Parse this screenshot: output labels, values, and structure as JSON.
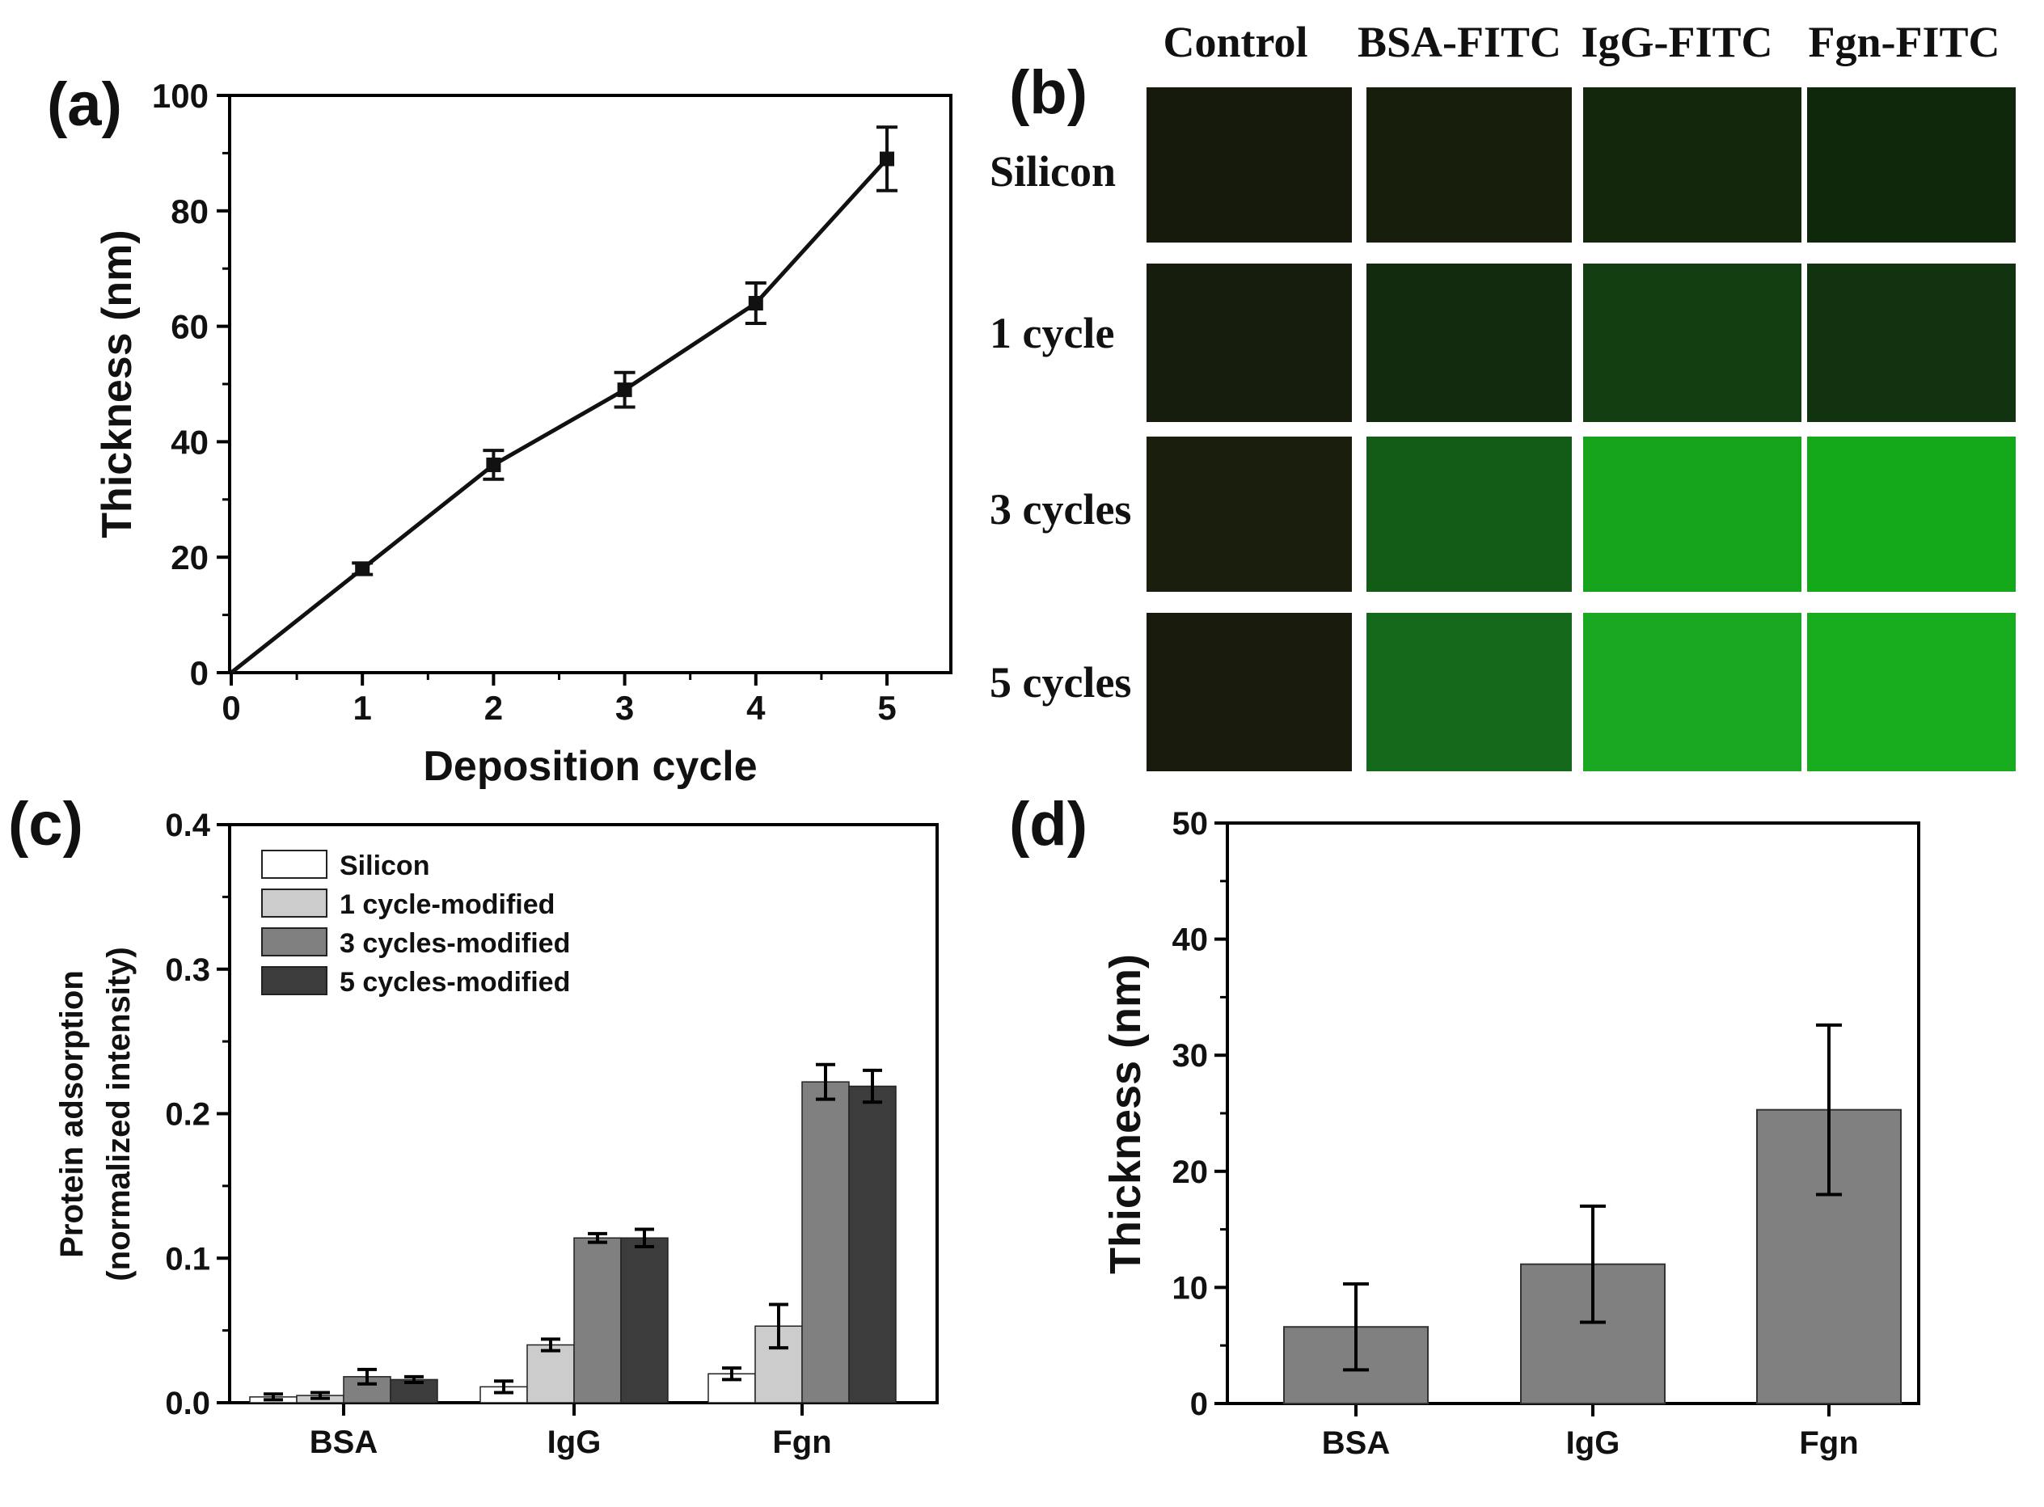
{
  "chart_data": [
    {
      "panel": "(a)",
      "type": "line",
      "xlabel": "Deposition cycle",
      "ylabel": "Thickness (nm)",
      "xlim": [
        0,
        5.5
      ],
      "ylim": [
        0,
        100
      ],
      "xticks": [
        0,
        1,
        2,
        3,
        4,
        5
      ],
      "yticks": [
        0,
        20,
        40,
        60,
        80,
        100
      ],
      "x": [
        0,
        1,
        2,
        3,
        4,
        5
      ],
      "y": [
        0,
        18,
        36,
        49,
        64,
        89
      ],
      "yerr": [
        0,
        1,
        2.5,
        3,
        3.5,
        5.5
      ],
      "color": "#111111"
    },
    {
      "panel": "(b)",
      "type": "table",
      "columns": [
        "Control",
        "BSA-FITC",
        "IgG-FITC",
        "Fgn-FITC"
      ],
      "rows": [
        "Silicon",
        "1 cycle",
        "3 cycles",
        "5 cycles"
      ],
      "cell_colors": [
        [
          "#161a0c",
          "#181e0c",
          "#13270d",
          "#0f280c"
        ],
        [
          "#171d0c",
          "#122b0f",
          "#123e12",
          "#11330f"
        ],
        [
          "#1a1e0c",
          "#135c18",
          "#16a31c",
          "#14a81b"
        ],
        [
          "#181a0c",
          "#146a1a",
          "#1aa721",
          "#17ad1e"
        ]
      ]
    },
    {
      "panel": "(c)",
      "type": "bar",
      "ylabel": "Protein adsorption",
      "ylabel2": "(normalized intensity)",
      "categories": [
        "BSA",
        "IgG",
        "Fgn"
      ],
      "ylim": [
        0,
        0.4
      ],
      "yticks": [
        0.0,
        0.1,
        0.2,
        0.3,
        0.4
      ],
      "ytick_labels": [
        "0.0",
        "0.1",
        "0.2",
        "0.3",
        "0.4"
      ],
      "legend_position": "top-left",
      "series": [
        {
          "name": "Silicon",
          "color": "#ffffff",
          "values": [
            0.004,
            0.011,
            0.02
          ],
          "err": [
            0.002,
            0.004,
            0.004
          ]
        },
        {
          "name": "1 cycle-modified",
          "color": "#cccccc",
          "values": [
            0.005,
            0.04,
            0.053
          ],
          "err": [
            0.002,
            0.004,
            0.015
          ]
        },
        {
          "name": "3 cycles-modified",
          "color": "#808080",
          "values": [
            0.018,
            0.114,
            0.222
          ],
          "err": [
            0.005,
            0.003,
            0.012
          ]
        },
        {
          "name": "5 cycles-modified",
          "color": "#3c3c3c",
          "values": [
            0.016,
            0.114,
            0.219
          ],
          "err": [
            0.002,
            0.006,
            0.011
          ]
        }
      ]
    },
    {
      "panel": "(d)",
      "type": "bar",
      "ylabel": "Thickness (nm)",
      "categories": [
        "BSA",
        "IgG",
        "Fgn"
      ],
      "ylim": [
        0,
        50
      ],
      "yticks": [
        0,
        10,
        20,
        30,
        40,
        50
      ],
      "color": "#808080",
      "values": [
        6.6,
        12.0,
        25.3
      ],
      "err": [
        3.7,
        5.0,
        7.3
      ]
    }
  ]
}
